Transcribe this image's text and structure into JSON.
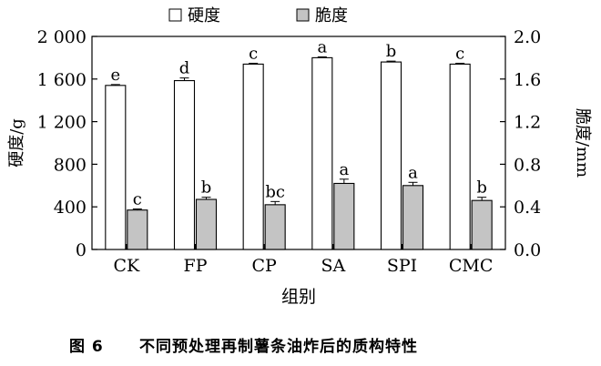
{
  "chart_data": {
    "type": "bar",
    "categories": [
      "CK",
      "FP",
      "CP",
      "SA",
      "SPI",
      "CMC"
    ],
    "xlabel": "组别",
    "ylabel_left": "硬度/g",
    "ylabel_right": "脆度/mm",
    "ylim_left": [
      0,
      2000
    ],
    "ylim_right": [
      0,
      2.0
    ],
    "yticks_left": [
      0,
      400,
      800,
      1200,
      1600,
      2000
    ],
    "yticks_left_labels": [
      "0",
      "400",
      "800",
      "1 200",
      "1 600",
      "2 000"
    ],
    "yticks_right": [
      0,
      0.4,
      0.8,
      1.2,
      1.6,
      2.0
    ],
    "yticks_right_labels": [
      "0.0",
      "0.4",
      "0.8",
      "1.2",
      "1.6",
      "2.0"
    ],
    "legend_position": "top-center",
    "grid": false,
    "series": [
      {
        "name": "硬度",
        "axis": "left",
        "color": "#ffffff",
        "values": [
          1540,
          1585,
          1740,
          1800,
          1760,
          1740
        ],
        "errors": [
          8,
          25,
          8,
          8,
          8,
          8
        ],
        "labels": [
          "e",
          "d",
          "c",
          "a",
          "b",
          "c"
        ]
      },
      {
        "name": "脆度",
        "axis": "right",
        "color": "#c4c4c4",
        "values": [
          0.37,
          0.47,
          0.42,
          0.62,
          0.6,
          0.46
        ],
        "errors": [
          0.01,
          0.02,
          0.03,
          0.04,
          0.03,
          0.03
        ],
        "labels": [
          "c",
          "b",
          "bc",
          "a",
          "a",
          "b"
        ]
      }
    ]
  },
  "caption": {
    "number": "图 6",
    "text": "不同预处理再制薯条油炸后的质构特性"
  }
}
